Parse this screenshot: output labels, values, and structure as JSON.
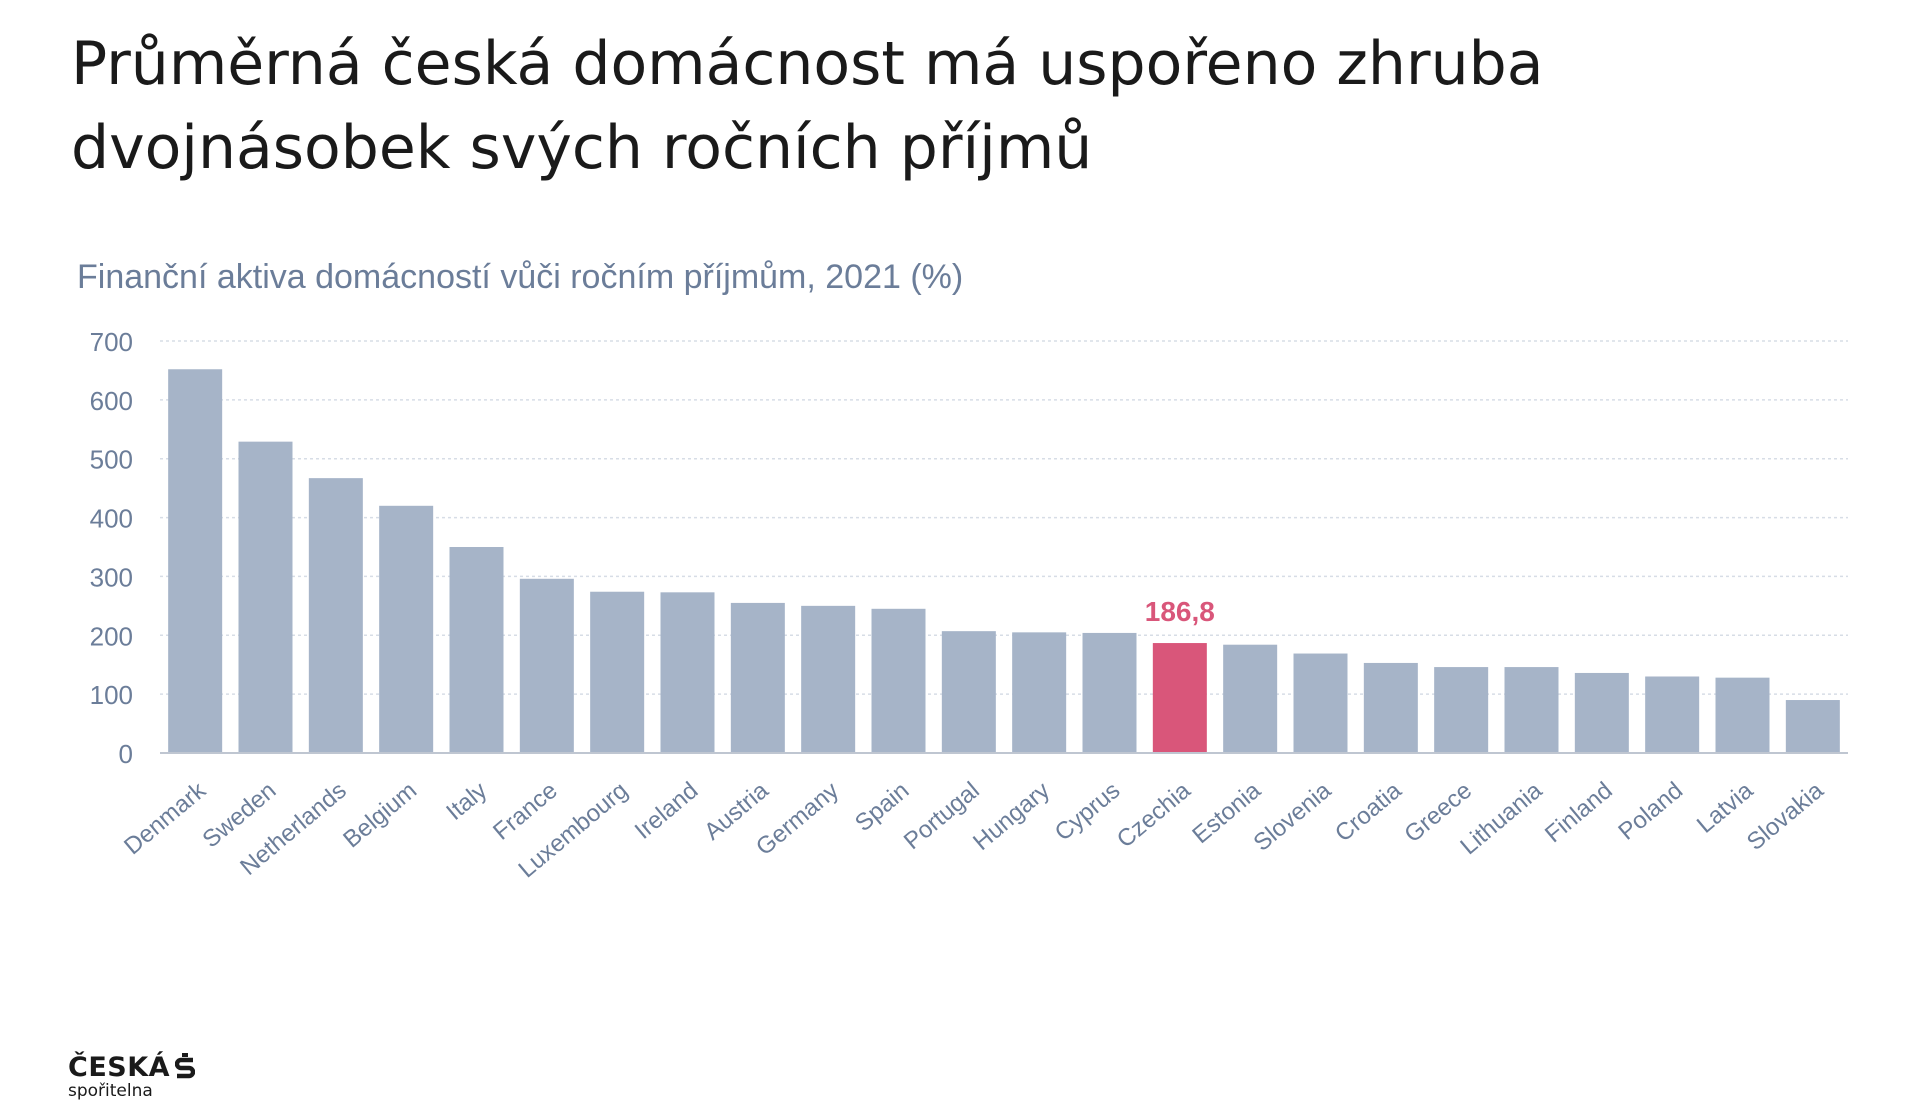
{
  "slide": {
    "title_line1": "Průměrná česká domácnost má uspořeno zhruba",
    "title_line2": "dvojnásobek svých ročních příjmů"
  },
  "chart_data": {
    "type": "bar",
    "title": "Finanční aktiva domácností vůči ročním příjmům, 2021 (%)",
    "categories": [
      "Denmark",
      "Sweden",
      "Netherlands",
      "Belgium",
      "Italy",
      "France",
      "Luxembourg",
      "Ireland",
      "Austria",
      "Germany",
      "Spain",
      "Portugal",
      "Hungary",
      "Cyprus",
      "Czechia",
      "Estonia",
      "Slovenia",
      "Croatia",
      "Greece",
      "Lithuania",
      "Finland",
      "Poland",
      "Latvia",
      "Slovakia"
    ],
    "values": [
      652,
      529,
      467,
      420,
      350,
      296,
      274,
      273,
      255,
      250,
      245,
      207,
      205,
      204,
      186.8,
      184,
      169,
      153,
      146,
      146,
      136,
      130,
      128,
      90
    ],
    "ylim": [
      0,
      700
    ],
    "yticks": [
      "0",
      "100",
      "200",
      "300",
      "400",
      "500",
      "600",
      "700"
    ],
    "grid": true,
    "highlight": {
      "category": "Czechia",
      "label": "186,8"
    },
    "colors": {
      "bar": "#a6b4c8",
      "highlight": "#d9567a",
      "axis_text": "#6b7d99",
      "grid": "#d7dde6"
    }
  },
  "logo": {
    "word": "ČESKÁ",
    "sub": "spořitelna"
  }
}
